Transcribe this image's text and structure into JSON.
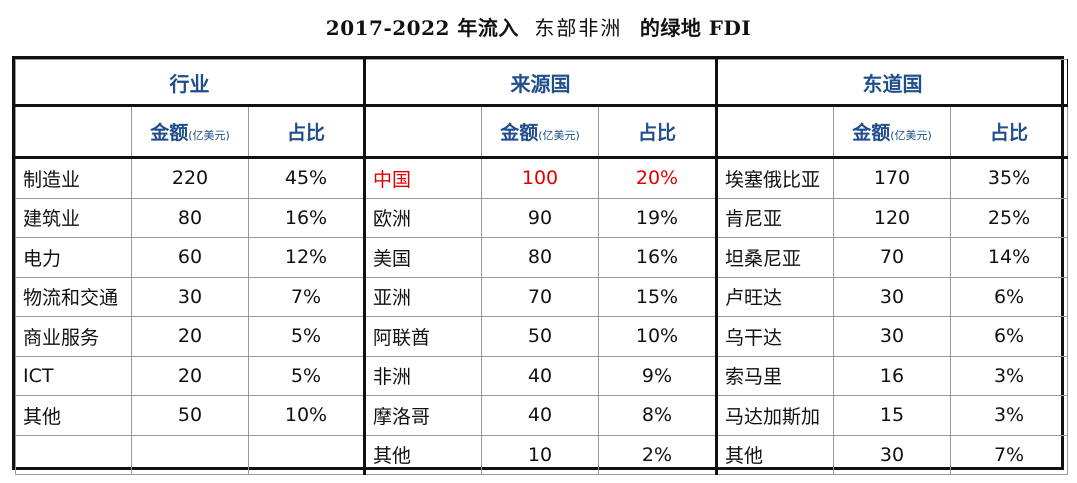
{
  "title": {
    "part1": "2017-2022 年流入",
    "part2": "东部非洲",
    "part3": "的绿地 FDI"
  },
  "groups": [
    "行业",
    "来源国",
    "东道国"
  ],
  "subheader": {
    "amount": "金额",
    "unit": "(亿美元)",
    "share": "占比"
  },
  "colors": {
    "header_text": "#1f4e8c",
    "highlight": "#e00000"
  },
  "rows": [
    {
      "ind": "制造业",
      "ind_amt": "220",
      "ind_pct": "45%",
      "src": "中国",
      "src_amt": "100",
      "src_pct": "20%",
      "host": "埃塞俄比亚",
      "host_amt": "170",
      "host_pct": "35%"
    },
    {
      "ind": "建筑业",
      "ind_amt": "80",
      "ind_pct": "16%",
      "src": "欧洲",
      "src_amt": "90",
      "src_pct": "19%",
      "host": "肯尼亚",
      "host_amt": "120",
      "host_pct": "25%"
    },
    {
      "ind": "电力",
      "ind_amt": "60",
      "ind_pct": "12%",
      "src": "美国",
      "src_amt": "80",
      "src_pct": "16%",
      "host": "坦桑尼亚",
      "host_amt": "70",
      "host_pct": "14%"
    },
    {
      "ind": "物流和交通",
      "ind_amt": "30",
      "ind_pct": "7%",
      "src": "亚洲",
      "src_amt": "70",
      "src_pct": "15%",
      "host": "卢旺达",
      "host_amt": "30",
      "host_pct": "6%"
    },
    {
      "ind": "商业服务",
      "ind_amt": "20",
      "ind_pct": "5%",
      "src": "阿联酋",
      "src_amt": "50",
      "src_pct": "10%",
      "host": "乌干达",
      "host_amt": "30",
      "host_pct": "6%"
    },
    {
      "ind": "ICT",
      "ind_amt": "20",
      "ind_pct": "5%",
      "src": "非洲",
      "src_amt": "40",
      "src_pct": "9%",
      "host": "索马里",
      "host_amt": "16",
      "host_pct": "3%"
    },
    {
      "ind": "其他",
      "ind_amt": "50",
      "ind_pct": "10%",
      "src": "摩洛哥",
      "src_amt": "40",
      "src_pct": "8%",
      "host": "马达加斯加",
      "host_amt": "15",
      "host_pct": "3%"
    },
    {
      "ind": "",
      "ind_amt": "",
      "ind_pct": "",
      "src": "其他",
      "src_amt": "10",
      "src_pct": "2%",
      "host": "其他",
      "host_amt": "30",
      "host_pct": "7%"
    }
  ]
}
